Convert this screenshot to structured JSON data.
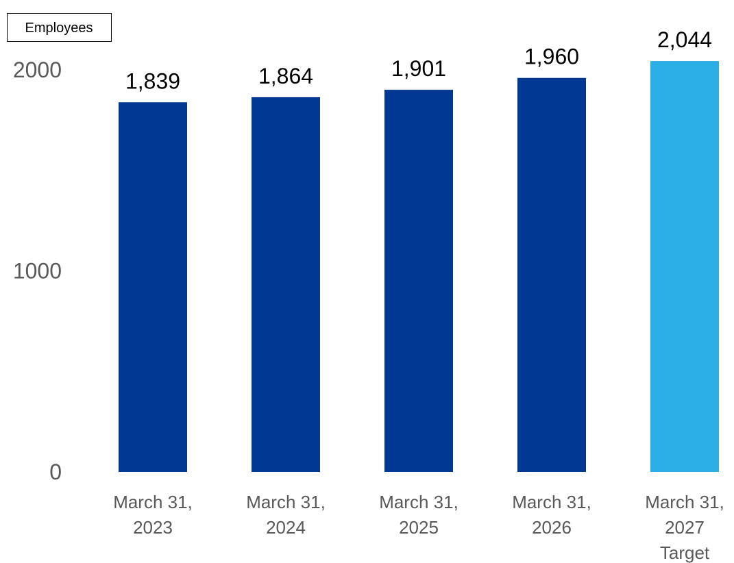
{
  "chart_data": {
    "type": "bar",
    "unit_label": "Employees",
    "categories": [
      [
        "March 31,",
        "2023"
      ],
      [
        "March 31,",
        "2024"
      ],
      [
        "March 31,",
        "2025"
      ],
      [
        "March 31,",
        "2026"
      ],
      [
        "March 31,",
        "2027",
        "Target"
      ]
    ],
    "values": [
      1839,
      1864,
      1901,
      1960,
      2044
    ],
    "data_labels": [
      "1,839",
      "1,864",
      "1,901",
      "1,960",
      "2,044"
    ],
    "bar_colors": [
      "#003893",
      "#003893",
      "#003893",
      "#003893",
      "#2BAEE5"
    ],
    "yticks": [
      0,
      1000,
      2000
    ],
    "ylim": [
      0,
      2000
    ],
    "grid": false,
    "legend": "none"
  }
}
